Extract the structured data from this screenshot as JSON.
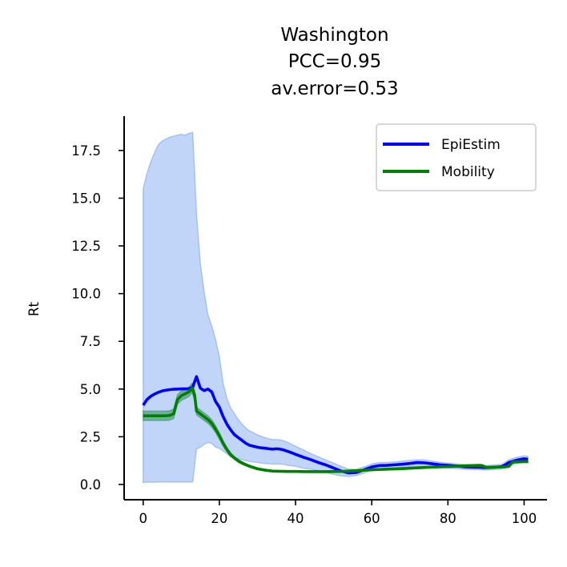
{
  "chart_data": {
    "type": "line",
    "title": [
      "Washington",
      "PCC=0.95",
      "av.error=0.53"
    ],
    "xlabel": "",
    "ylabel": "Rt",
    "xlim": [
      -5,
      106
    ],
    "ylim": [
      -0.8,
      19.3
    ],
    "xticks": [
      0,
      20,
      40,
      60,
      80,
      100
    ],
    "xtick_labels": [
      "0",
      "20",
      "40",
      "60",
      "80",
      "100"
    ],
    "yticks": [
      0.0,
      2.5,
      5.0,
      7.5,
      10.0,
      12.5,
      15.0,
      17.5
    ],
    "ytick_labels": [
      "0.0",
      "2.5",
      "5.0",
      "7.5",
      "10.0",
      "12.5",
      "15.0",
      "17.5"
    ],
    "grid": false,
    "legend_position": "top-right",
    "series": [
      {
        "name": "EpiEstim",
        "color": "#0000ff",
        "band_color": "#6495ed",
        "x": [
          0,
          1,
          2,
          3,
          4,
          5,
          6,
          7,
          8,
          9,
          10,
          11,
          12,
          13,
          14,
          15,
          16,
          17,
          18,
          19,
          20,
          21,
          22,
          23,
          24,
          25,
          26,
          27,
          28,
          29,
          30,
          31,
          32,
          33,
          34,
          35,
          36,
          37,
          38,
          39,
          40,
          42,
          44,
          46,
          48,
          50,
          52,
          54,
          56,
          58,
          60,
          62,
          64,
          66,
          68,
          70,
          72,
          74,
          76,
          78,
          80,
          82,
          84,
          86,
          88,
          89,
          90,
          92,
          94,
          95,
          96,
          98,
          100,
          101
        ],
        "y": [
          4.15,
          4.45,
          4.62,
          4.74,
          4.83,
          4.9,
          4.94,
          4.97,
          4.99,
          5.0,
          5.01,
          5.01,
          5.02,
          5.1,
          5.65,
          5.05,
          4.92,
          5.0,
          4.85,
          4.35,
          4.05,
          3.55,
          3.15,
          2.85,
          2.6,
          2.45,
          2.3,
          2.15,
          2.05,
          2.0,
          1.95,
          1.92,
          1.9,
          1.87,
          1.85,
          1.87,
          1.85,
          1.8,
          1.73,
          1.66,
          1.58,
          1.43,
          1.3,
          1.15,
          1.02,
          0.86,
          0.7,
          0.6,
          0.63,
          0.77,
          0.92,
          0.99,
          1.0,
          1.03,
          1.06,
          1.1,
          1.15,
          1.13,
          1.08,
          1.03,
          1.0,
          0.97,
          0.93,
          0.91,
          0.9,
          0.89,
          0.88,
          0.9,
          0.93,
          1.02,
          1.15,
          1.27,
          1.35,
          1.32
        ],
        "lower": [
          0.1,
          0.12,
          0.12,
          0.12,
          0.13,
          0.13,
          0.13,
          0.13,
          0.13,
          0.13,
          0.13,
          0.13,
          0.13,
          0.13,
          1.85,
          1.95,
          2.1,
          2.2,
          2.15,
          1.95,
          1.9,
          1.75,
          1.6,
          1.45,
          1.4,
          1.35,
          1.3,
          1.25,
          1.2,
          1.18,
          1.15,
          1.12,
          1.1,
          1.08,
          1.07,
          1.07,
          1.07,
          1.05,
          1.0,
          0.98,
          0.95,
          0.85,
          0.8,
          0.72,
          0.62,
          0.52,
          0.45,
          0.42,
          0.47,
          0.6,
          0.75,
          0.82,
          0.85,
          0.87,
          0.9,
          0.92,
          0.95,
          0.95,
          0.92,
          0.88,
          0.85,
          0.83,
          0.8,
          0.78,
          0.78,
          0.77,
          0.76,
          0.78,
          0.8,
          0.88,
          1.0,
          1.1,
          1.18,
          1.15
        ],
        "upper": [
          15.5,
          16.3,
          16.9,
          17.4,
          17.8,
          18.0,
          18.1,
          18.2,
          18.25,
          18.3,
          18.35,
          18.3,
          18.4,
          18.45,
          14.2,
          11.6,
          10.1,
          8.9,
          8.3,
          7.6,
          6.7,
          5.3,
          4.5,
          4.0,
          3.7,
          3.4,
          3.15,
          2.95,
          2.8,
          2.7,
          2.6,
          2.52,
          2.45,
          2.4,
          2.35,
          2.35,
          2.33,
          2.28,
          2.2,
          2.1,
          2.0,
          1.82,
          1.62,
          1.45,
          1.28,
          1.12,
          0.95,
          0.8,
          0.8,
          0.92,
          1.08,
          1.15,
          1.15,
          1.18,
          1.22,
          1.26,
          1.3,
          1.28,
          1.22,
          1.16,
          1.12,
          1.08,
          1.05,
          1.03,
          1.02,
          1.0,
          0.99,
          1.02,
          1.05,
          1.15,
          1.3,
          1.42,
          1.5,
          1.47
        ]
      },
      {
        "name": "Mobility",
        "color": "#008000",
        "band_color": "#2e8b57",
        "x": [
          0,
          2,
          4,
          6,
          7,
          8,
          9,
          10,
          11,
          12,
          12.8,
          13.5,
          14,
          15,
          16,
          17,
          18,
          19,
          20,
          21,
          22,
          23,
          24,
          25,
          26,
          27,
          28,
          30,
          32,
          34,
          36,
          38,
          40,
          44,
          48,
          52,
          56,
          60,
          64,
          68,
          72,
          76,
          80,
          84,
          88,
          89,
          90,
          92,
          94,
          95,
          96,
          97,
          100,
          101
        ],
        "y": [
          3.6,
          3.6,
          3.6,
          3.6,
          3.62,
          3.7,
          4.45,
          4.65,
          4.75,
          4.85,
          5.05,
          4.7,
          3.85,
          3.7,
          3.55,
          3.4,
          3.2,
          2.9,
          2.55,
          2.15,
          1.82,
          1.55,
          1.38,
          1.23,
          1.12,
          1.03,
          0.95,
          0.82,
          0.75,
          0.7,
          0.69,
          0.68,
          0.68,
          0.67,
          0.67,
          0.68,
          0.72,
          0.77,
          0.8,
          0.83,
          0.87,
          0.91,
          0.94,
          0.97,
          1.0,
          0.99,
          0.9,
          0.9,
          0.92,
          0.92,
          0.95,
          1.18,
          1.2,
          1.2
        ],
        "lower": [
          3.35,
          3.35,
          3.35,
          3.35,
          3.37,
          3.45,
          4.2,
          4.4,
          4.5,
          4.6,
          4.8,
          4.45,
          3.65,
          3.5,
          3.35,
          3.2,
          3.0,
          2.72,
          2.38,
          2.0,
          1.7,
          1.45,
          1.3,
          1.15,
          1.05,
          0.97,
          0.9,
          0.78,
          0.71,
          0.66,
          0.65,
          0.64,
          0.64,
          0.63,
          0.63,
          0.64,
          0.68,
          0.73,
          0.76,
          0.79,
          0.83,
          0.87,
          0.9,
          0.93,
          0.96,
          0.95,
          0.86,
          0.86,
          0.88,
          0.88,
          0.91,
          1.12,
          1.14,
          1.14
        ],
        "upper": [
          3.85,
          3.85,
          3.85,
          3.85,
          3.87,
          3.95,
          4.7,
          4.9,
          5.0,
          5.1,
          5.3,
          4.95,
          4.05,
          3.9,
          3.75,
          3.6,
          3.4,
          3.08,
          2.72,
          2.3,
          1.94,
          1.65,
          1.46,
          1.31,
          1.19,
          1.09,
          1.0,
          0.86,
          0.79,
          0.74,
          0.73,
          0.72,
          0.72,
          0.71,
          0.71,
          0.72,
          0.76,
          0.81,
          0.84,
          0.87,
          0.91,
          0.95,
          0.98,
          1.01,
          1.04,
          1.03,
          0.94,
          0.94,
          0.96,
          0.96,
          0.99,
          1.24,
          1.26,
          1.26
        ]
      }
    ]
  }
}
